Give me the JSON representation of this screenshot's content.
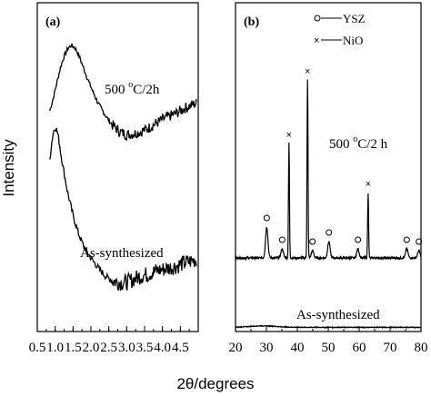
{
  "figure": {
    "ylabel": "Intensity",
    "xlabel": "2θ/degrees"
  },
  "chart_data": [
    {
      "type": "line",
      "panel_label": "(a)",
      "xlim": [
        0.5,
        5.0
      ],
      "x_ticks": [
        "0.5",
        "1.0",
        "1.5",
        "2.0",
        "2.5",
        "3.0",
        "3.5",
        "4.0",
        "4.5"
      ],
      "x_tick_values": [
        0.5,
        1.0,
        1.5,
        2.0,
        2.5,
        3.0,
        3.5,
        4.0,
        4.5
      ],
      "grid": false,
      "series": [
        {
          "name": "500 °C/2h",
          "label_main": "500 ",
          "label_sup": "o",
          "label_rest": "C/2h",
          "x": [
            0.85,
            0.95,
            1.05,
            1.15,
            1.25,
            1.35,
            1.45,
            1.55,
            1.65,
            1.75,
            1.9,
            2.05,
            2.2,
            2.4,
            2.6,
            2.8,
            3.0,
            3.2,
            3.4,
            3.6,
            3.8,
            4.0,
            4.2,
            4.4,
            4.6,
            4.8,
            4.95
          ],
          "y": [
            0.4,
            0.52,
            0.66,
            0.8,
            0.9,
            0.97,
            1.0,
            0.98,
            0.92,
            0.83,
            0.7,
            0.58,
            0.47,
            0.36,
            0.27,
            0.21,
            0.18,
            0.19,
            0.21,
            0.24,
            0.28,
            0.32,
            0.35,
            0.38,
            0.42,
            0.45,
            0.47
          ]
        },
        {
          "name": "As-synthesized",
          "x": [
            0.85,
            0.9,
            0.95,
            1.0,
            1.05,
            1.1,
            1.15,
            1.25,
            1.35,
            1.5,
            1.65,
            1.8,
            2.0,
            2.2,
            2.4,
            2.6,
            2.8,
            3.0,
            3.2,
            3.4,
            3.6,
            3.8,
            4.0,
            4.2,
            4.4,
            4.6,
            4.8,
            4.95
          ],
          "y": [
            0.8,
            0.9,
            0.97,
            1.0,
            0.98,
            0.93,
            0.85,
            0.72,
            0.6,
            0.46,
            0.35,
            0.27,
            0.2,
            0.14,
            0.09,
            0.06,
            0.05,
            0.05,
            0.07,
            0.09,
            0.1,
            0.12,
            0.13,
            0.14,
            0.15,
            0.17,
            0.18,
            0.19
          ]
        }
      ]
    },
    {
      "type": "line",
      "panel_label": "(b)",
      "xlim": [
        20,
        80
      ],
      "x_ticks": [
        "20",
        "30",
        "40",
        "50",
        "60",
        "70",
        "80"
      ],
      "x_tick_values": [
        20,
        30,
        40,
        50,
        60,
        70,
        80
      ],
      "grid": false,
      "legend": {
        "placement": "top-right",
        "entries": [
          {
            "marker": "o",
            "label": "YSZ"
          },
          {
            "marker": "×",
            "label": "NiO"
          }
        ]
      },
      "series": [
        {
          "name": "500 °C/2 h",
          "label_main": "500 ",
          "label_sup": "o",
          "label_rest": "C/2 h",
          "baseline": 0.02,
          "peaks": [
            {
              "x": 30.1,
              "height": 0.17,
              "marker": "o"
            },
            {
              "x": 35.1,
              "height": 0.05,
              "marker": "o"
            },
            {
              "x": 37.3,
              "height": 0.63,
              "marker": "×"
            },
            {
              "x": 43.3,
              "height": 0.98,
              "marker": "×"
            },
            {
              "x": 44.9,
              "height": 0.04,
              "marker": "o"
            },
            {
              "x": 50.2,
              "height": 0.09,
              "marker": "o"
            },
            {
              "x": 59.6,
              "height": 0.05,
              "marker": "o"
            },
            {
              "x": 62.9,
              "height": 0.36,
              "marker": "×"
            },
            {
              "x": 75.4,
              "height": 0.05,
              "marker": "o"
            },
            {
              "x": 79.3,
              "height": 0.04,
              "marker": "o"
            }
          ]
        },
        {
          "name": "As-synthesized",
          "baseline": 0.02
        }
      ]
    }
  ]
}
